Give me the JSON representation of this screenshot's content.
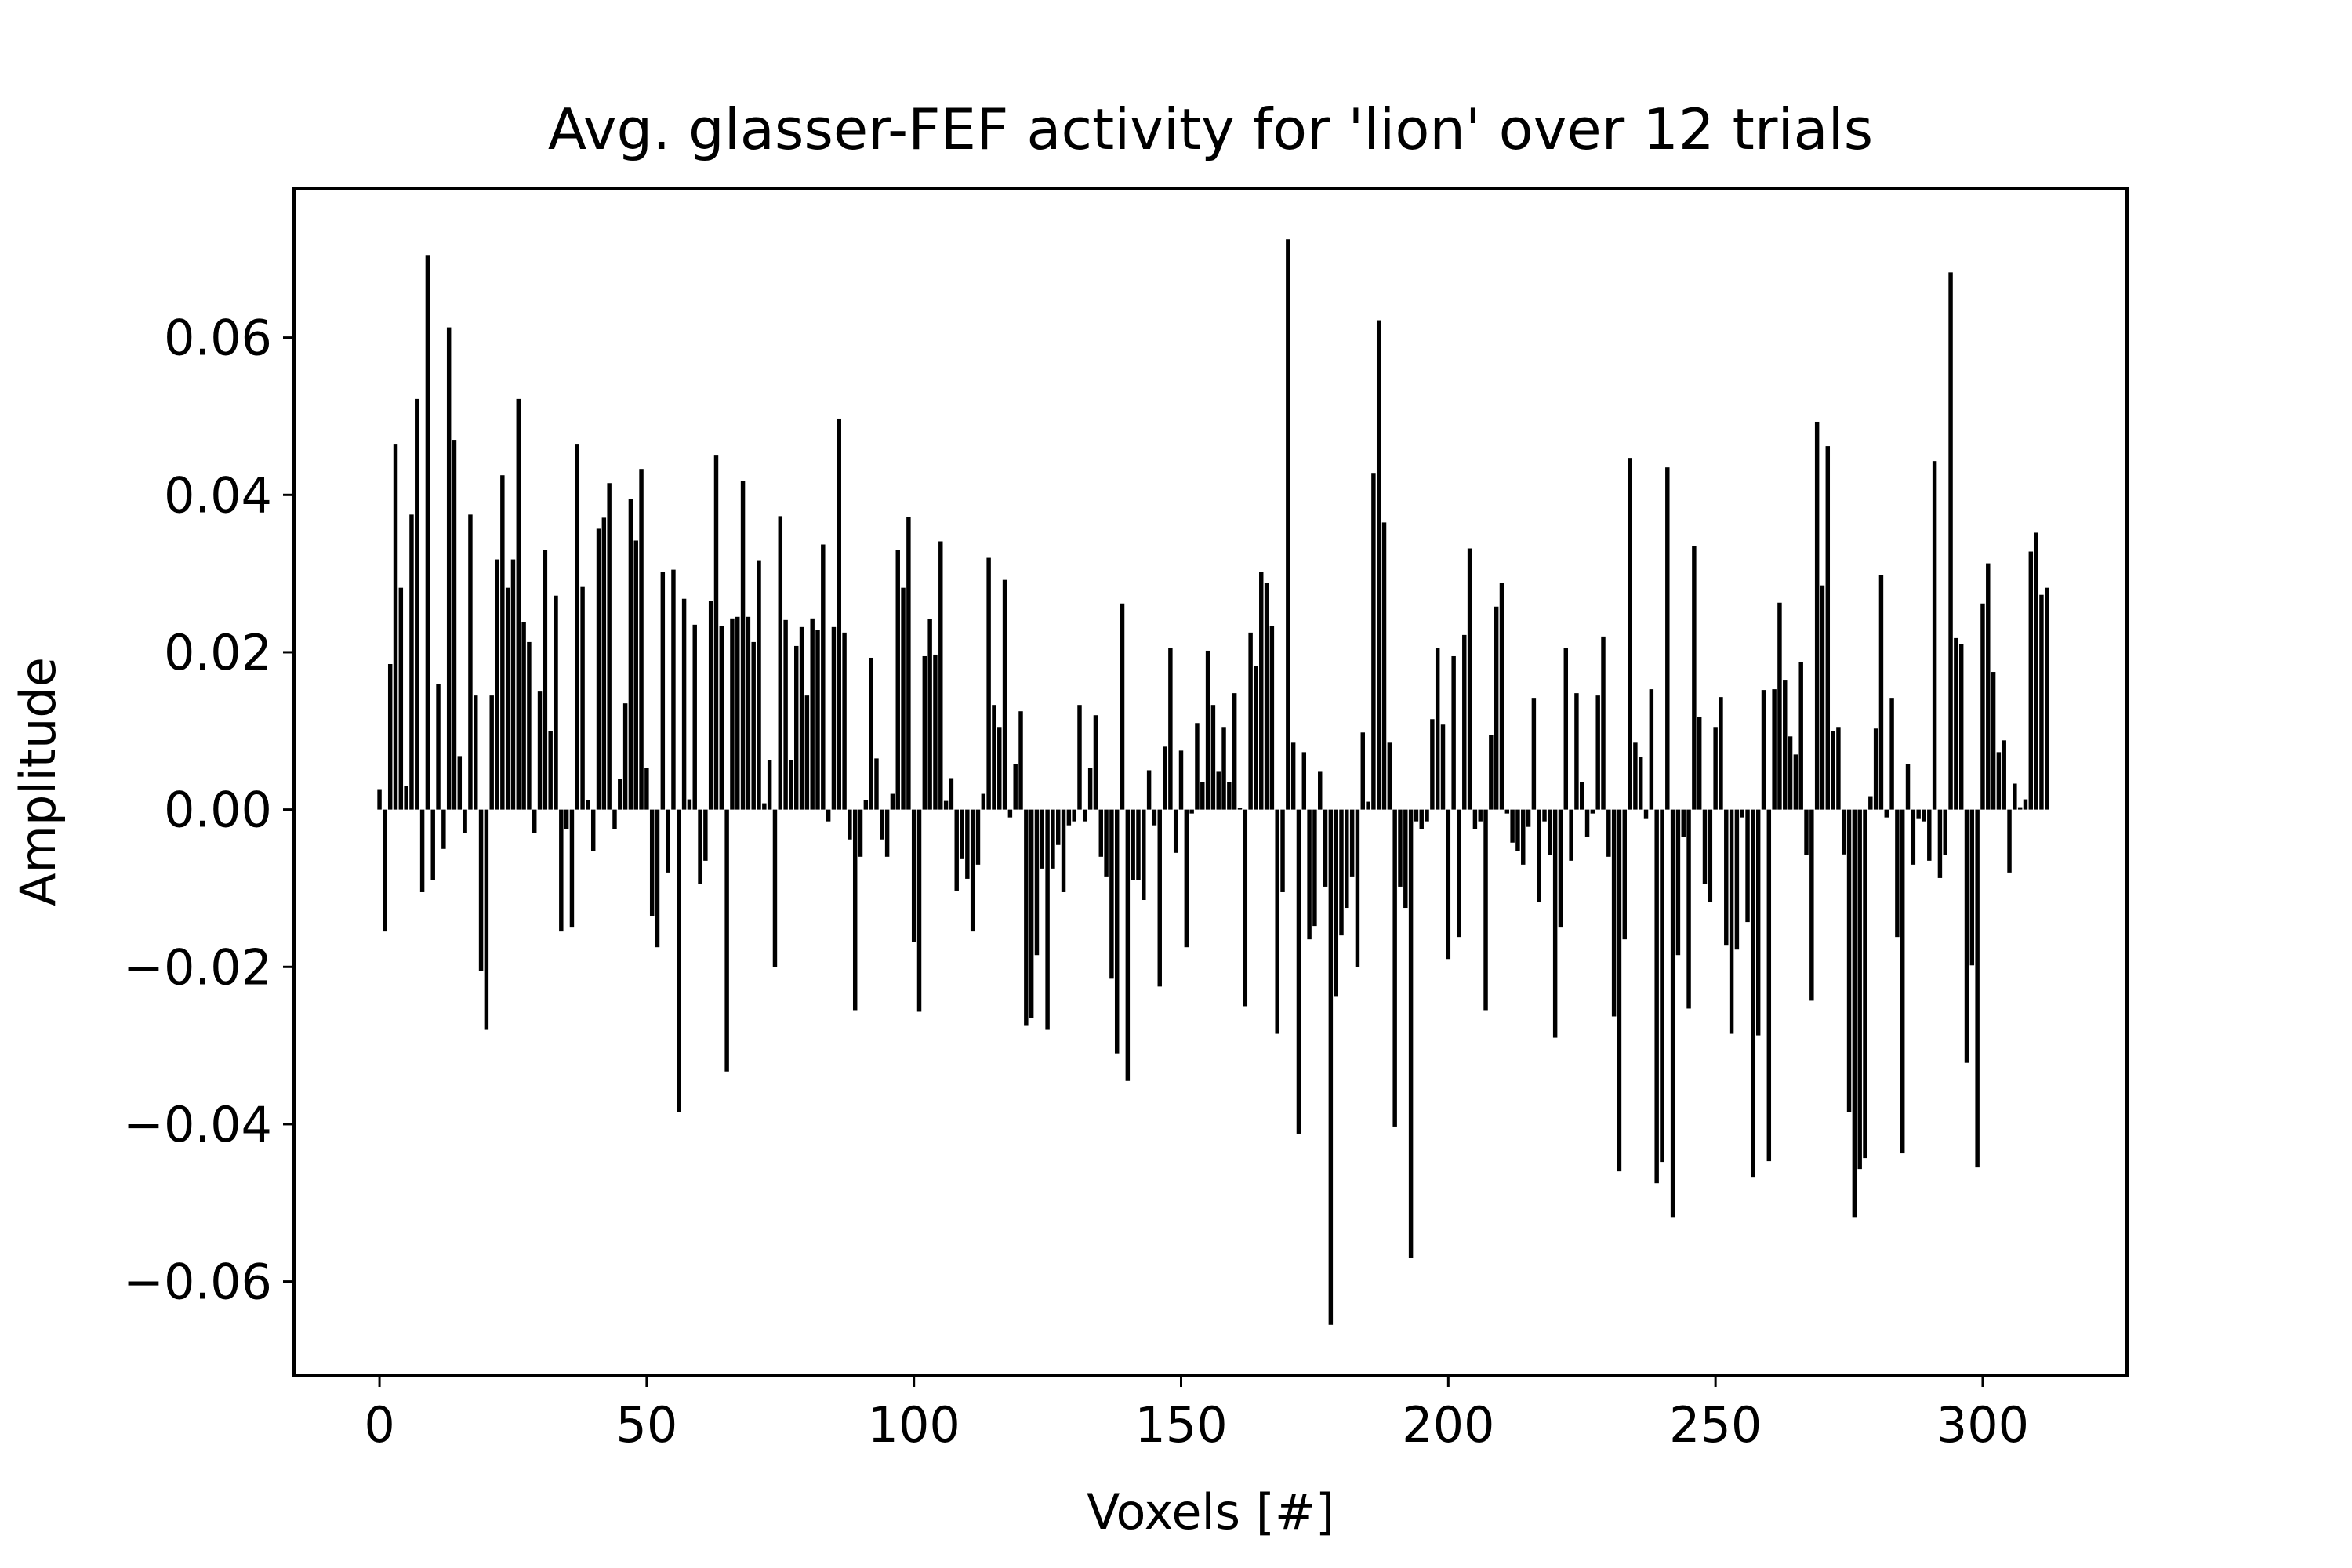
{
  "chart_data": {
    "type": "bar",
    "title": "Avg. glasser-FEF activity for 'lion' over 12 trials",
    "xlabel": "Voxels [#]",
    "ylabel": "Amplitude",
    "xlim": [
      -16,
      327
    ],
    "ylim": [
      -0.072,
      0.079
    ],
    "xticks": [
      0,
      50,
      100,
      150,
      200,
      250,
      300
    ],
    "xtick_labels": [
      "0",
      "50",
      "100",
      "150",
      "200",
      "250",
      "300"
    ],
    "yticks": [
      -0.06,
      -0.04,
      -0.02,
      0.0,
      0.02,
      0.04,
      0.06
    ],
    "ytick_labels": [
      "−0.06",
      "−0.04",
      "−0.02",
      "0.00",
      "0.02",
      "0.04",
      "0.06"
    ],
    "grid": false,
    "bar_color": "#000000",
    "x_start": 0,
    "values": [
      0.0025,
      -0.0155,
      0.0185,
      0.0465,
      0.0282,
      0.003,
      0.0375,
      0.0522,
      -0.0105,
      0.0705,
      -0.009,
      0.016,
      -0.005,
      0.0613,
      0.047,
      0.0068,
      -0.003,
      0.0375,
      0.0145,
      -0.0205,
      -0.028,
      0.0145,
      0.0318,
      0.0425,
      0.0282,
      0.0318,
      0.0522,
      0.0238,
      0.0213,
      -0.003,
      0.015,
      0.033,
      0.01,
      0.0272,
      -0.0155,
      -0.0025,
      -0.015,
      0.0465,
      0.0283,
      0.0012,
      -0.0053,
      0.0357,
      0.0371,
      0.0415,
      -0.0025,
      0.0039,
      0.0135,
      0.0395,
      0.0342,
      0.0433,
      0.0053,
      -0.0135,
      -0.0175,
      0.0302,
      -0.008,
      0.0305,
      -0.0385,
      0.0268,
      0.0013,
      0.0235,
      -0.0095,
      -0.0065,
      0.0265,
      0.0451,
      0.0233,
      -0.0333,
      0.0243,
      0.0245,
      0.0418,
      0.0245,
      0.0213,
      0.0317,
      0.0008,
      0.0063,
      -0.02,
      0.0373,
      0.0241,
      0.0063,
      0.0208,
      0.0232,
      0.0145,
      0.0243,
      0.0228,
      0.0337,
      -0.0015,
      0.0232,
      0.0497,
      0.0225,
      -0.0038,
      -0.0255,
      -0.006,
      0.0012,
      0.0193,
      0.0065,
      -0.0038,
      -0.006,
      0.002,
      0.033,
      0.0282,
      0.0372,
      -0.0168,
      -0.0257,
      0.0195,
      0.0242,
      0.0197,
      0.0341,
      0.0011,
      0.004,
      -0.0103,
      -0.0063,
      -0.0088,
      -0.0155,
      -0.007,
      0.002,
      0.032,
      0.0133,
      0.0105,
      0.0292,
      -0.001,
      0.0058,
      0.0125,
      -0.0275,
      -0.0265,
      -0.0185,
      -0.0075,
      -0.028,
      -0.0075,
      -0.0045,
      -0.0105,
      -0.002,
      -0.0015,
      0.0133,
      -0.0015,
      0.0053,
      0.012,
      -0.006,
      -0.0085,
      -0.0215,
      -0.031,
      0.0262,
      -0.0345,
      -0.009,
      -0.009,
      -0.0115,
      0.005,
      -0.002,
      -0.0225,
      0.008,
      0.0205,
      -0.0055,
      0.0075,
      -0.0175,
      -0.0005,
      0.011,
      0.0035,
      0.0202,
      0.0133,
      0.0048,
      0.0105,
      0.0035,
      0.0148,
      0.0002,
      -0.025,
      0.0225,
      0.0182,
      0.0302,
      0.0288,
      0.0233,
      -0.0285,
      -0.0105,
      0.0725,
      0.0085,
      -0.0412,
      0.0073,
      -0.0165,
      -0.0148,
      0.0048,
      -0.0098,
      -0.0655,
      -0.0238,
      -0.016,
      -0.0125,
      -0.0085,
      -0.02,
      0.0098,
      0.001,
      0.0428,
      0.0622,
      0.0365,
      0.0085,
      -0.0403,
      -0.0098,
      -0.0125,
      -0.057,
      -0.0015,
      -0.0025,
      -0.0015,
      0.0115,
      0.0205,
      0.0108,
      -0.019,
      0.0195,
      -0.0162,
      0.0222,
      0.0332,
      -0.0025,
      -0.0015,
      -0.0255,
      0.0095,
      0.0258,
      0.0288,
      -0.0005,
      -0.0042,
      -0.0053,
      -0.007,
      -0.0022,
      0.0142,
      -0.0118,
      -0.0015,
      -0.0058,
      -0.029,
      -0.015,
      0.0205,
      -0.0065,
      0.0148,
      0.0035,
      -0.0035,
      -0.0005,
      0.0145,
      0.022,
      -0.006,
      -0.0263,
      -0.046,
      -0.0165,
      0.0447,
      0.0085,
      0.0067,
      -0.0012,
      0.0153,
      -0.0475,
      -0.0448,
      0.0435,
      -0.0518,
      -0.0185,
      -0.0035,
      -0.0253,
      0.0335,
      0.0118,
      -0.0095,
      -0.0118,
      0.0105,
      0.0143,
      -0.0172,
      -0.0285,
      -0.0178,
      -0.001,
      -0.0143,
      -0.0467,
      -0.0287,
      0.0152,
      -0.0447,
      0.0153,
      0.0263,
      0.0165,
      0.0093,
      0.007,
      0.0188,
      -0.0058,
      -0.0243,
      0.0493,
      0.0285,
      0.0462,
      0.01,
      0.0105,
      -0.0057,
      -0.0385,
      -0.0518,
      -0.0457,
      -0.0443,
      0.0017,
      0.0103,
      0.0298,
      -0.001,
      0.0142,
      -0.0162,
      -0.0437,
      0.0058,
      -0.007,
      -0.0012,
      -0.0015,
      -0.0065,
      0.0443,
      -0.0087,
      -0.0058,
      0.0683,
      0.0218,
      0.021,
      -0.0322,
      -0.0198,
      -0.0455,
      0.0262,
      0.0313,
      0.0175,
      0.0073,
      0.0088,
      -0.008,
      0.0033,
      0.0003,
      0.0013,
      0.0328,
      0.0352,
      0.0273,
      0.0282
    ]
  }
}
